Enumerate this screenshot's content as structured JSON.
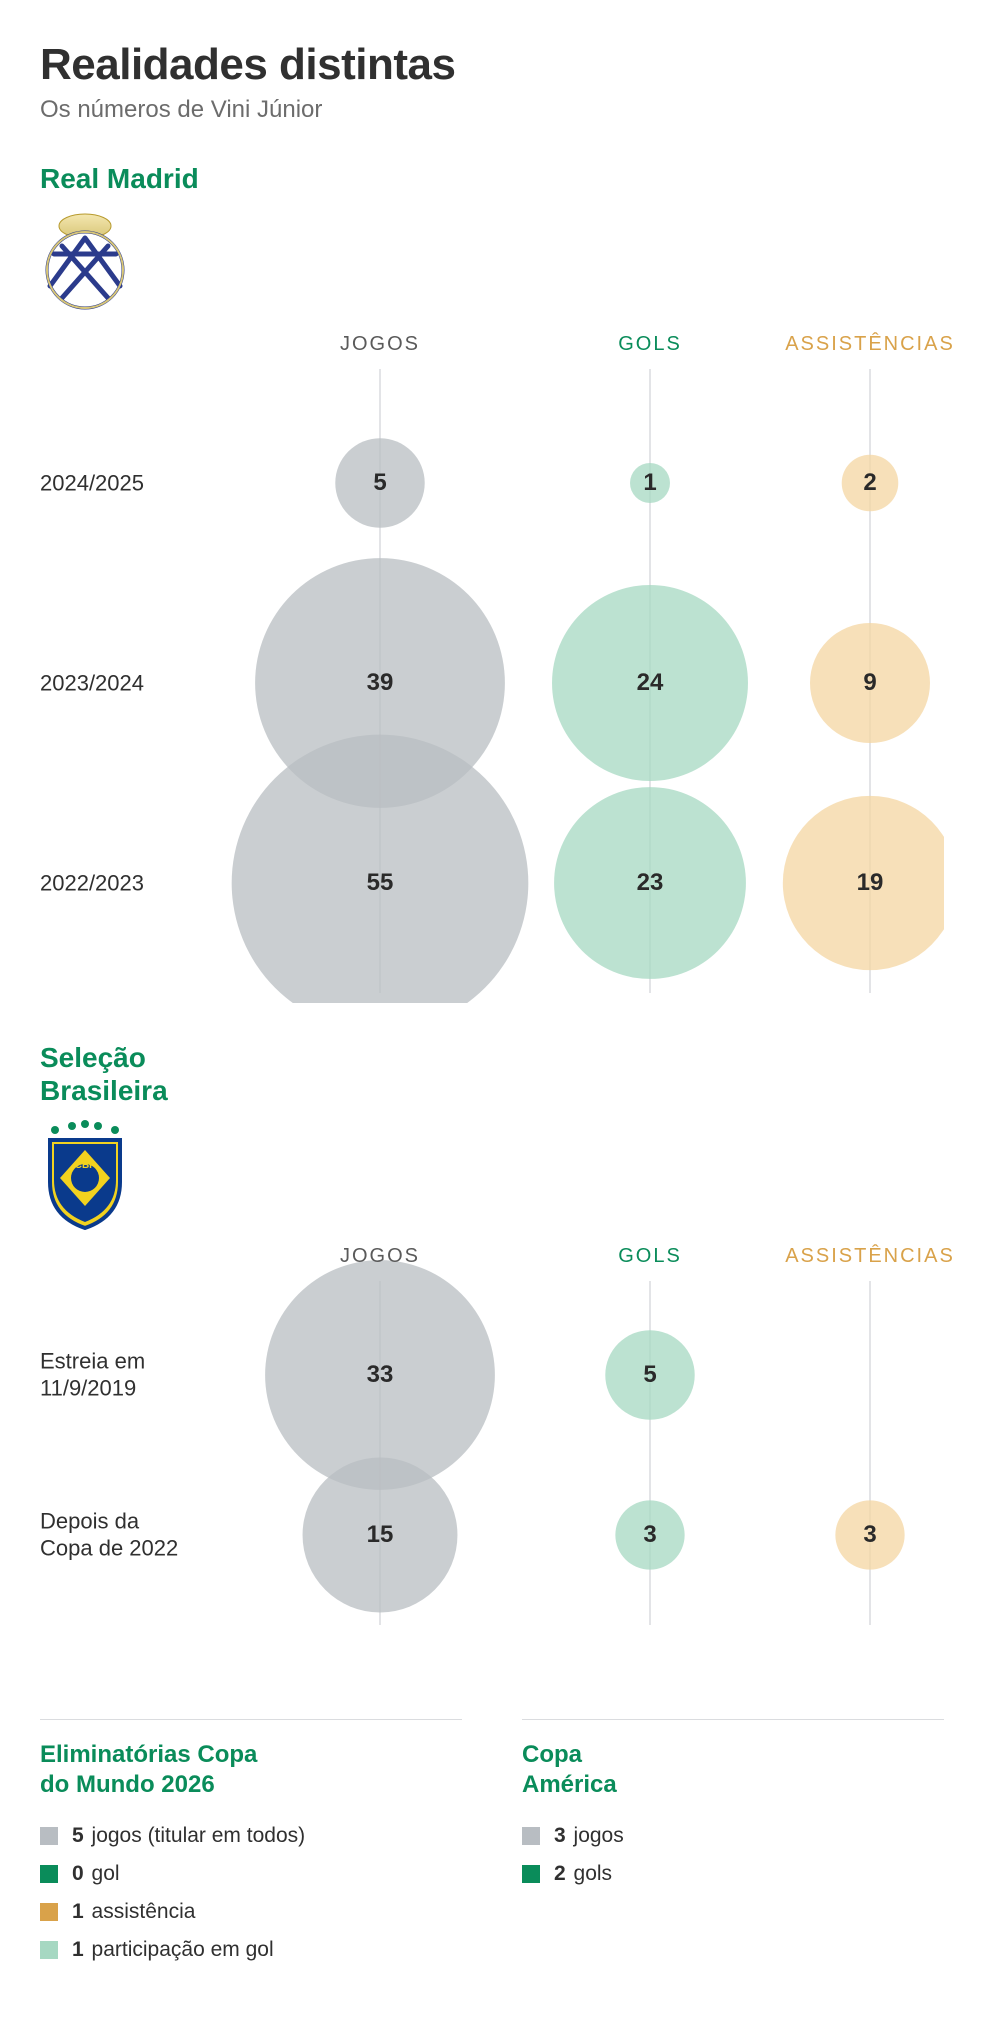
{
  "title": "Realidades distintas",
  "subtitle": "Os números de Vini Júnior",
  "columns": {
    "jogos": {
      "label": "JOGOS",
      "headColor": "#5a5a5a",
      "fill": "#b8bdc2"
    },
    "gols": {
      "label": "GOLS",
      "headColor": "#0a8c5a",
      "fill": "#a6d8c2"
    },
    "assistencias": {
      "label": "ASSISTÊNCIAS",
      "headColor": "#d9a24a",
      "fill": "#f4d5a1"
    }
  },
  "layout": {
    "chartWidthPx": 904,
    "colX": {
      "jogos": 340,
      "gols": 610,
      "assistencias": 830
    },
    "rowLabelWidth": 200,
    "headerHeight": 50,
    "bubble": {
      "radiusPerUnit": 20,
      "rScaleExponent": 0.5,
      "fillOpacity": 0.75
    },
    "gridlineColor": "#dadcdf",
    "valueFontSize": 24,
    "rowLabelFontSize": 22,
    "colLabelFontSize": 20
  },
  "sections": [
    {
      "id": "rm",
      "label": "Real Madrid",
      "logo": "real-madrid",
      "rowGap": 200,
      "rows": [
        {
          "label": "2024/2025",
          "jogos": 5,
          "gols": 1,
          "assistencias": 2
        },
        {
          "label": "2023/2024",
          "jogos": 39,
          "gols": 24,
          "assistencias": 9
        },
        {
          "label": "2022/2023",
          "jogos": 55,
          "gols": 23,
          "assistencias": 19
        }
      ]
    },
    {
      "id": "br",
      "label": "Seleção\nBrasileira",
      "logo": "cbf",
      "rowGap": 160,
      "rows": [
        {
          "label": "Estreia em\n11/9/2019",
          "jogos": 33,
          "gols": 5,
          "assistencias": null
        },
        {
          "label": "Depois da\nCopa de 2022",
          "jogos": 15,
          "gols": 3,
          "assistencias": 3
        }
      ]
    }
  ],
  "legend": {
    "left": {
      "title": "Eliminatórias Copa\ndo Mundo 2026",
      "items": [
        {
          "swatch": "#b8bdc2",
          "num": "5",
          "text": "jogos (titular em todos)"
        },
        {
          "swatch": "#0a8c5a",
          "num": "0",
          "text": "gol"
        },
        {
          "swatch": "#d9a24a",
          "num": "1",
          "text": "assistência"
        },
        {
          "swatch": "#a6d8c2",
          "num": "1",
          "text": "participação em gol"
        }
      ]
    },
    "right": {
      "title": "Copa\nAmérica",
      "items": [
        {
          "swatch": "#b8bdc2",
          "num": "3",
          "text": "jogos"
        },
        {
          "swatch": "#0a8c5a",
          "num": "2",
          "text": "gols"
        }
      ]
    }
  }
}
